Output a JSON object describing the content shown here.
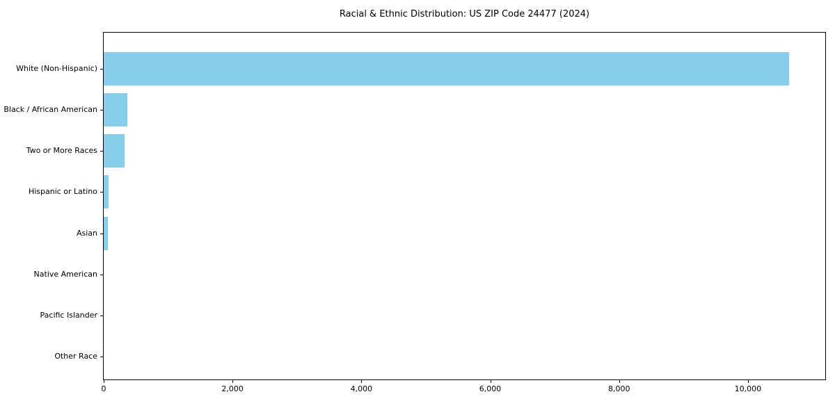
{
  "title": "Racial & Ethnic Distribution: US ZIP Code 24477 (2024)",
  "colors": {
    "bar": "#87CEEB",
    "axis": "#000000",
    "text": "#000000",
    "background": "#FFFFFF"
  },
  "chart_data": {
    "type": "bar",
    "orientation": "horizontal",
    "title": "Racial & Ethnic Distribution: US ZIP Code 24477 (2024)",
    "categories": [
      "White (Non-Hispanic)",
      "Black / African American",
      "Two or More Races",
      "Hispanic or Latino",
      "Asian",
      "Native American",
      "Pacific Islander",
      "Other Race"
    ],
    "values": [
      10633,
      367,
      324,
      72,
      61,
      0,
      0,
      0
    ],
    "bar_color": "#87CEEB",
    "xlabel": "",
    "ylabel": "",
    "xlim": [
      0,
      11200
    ],
    "x_ticks": [
      0,
      2000,
      4000,
      6000,
      8000,
      10000
    ],
    "x_tick_labels": [
      "0",
      "2,000",
      "4,000",
      "6,000",
      "8,000",
      "10,000"
    ],
    "grid": false,
    "legend": null
  }
}
